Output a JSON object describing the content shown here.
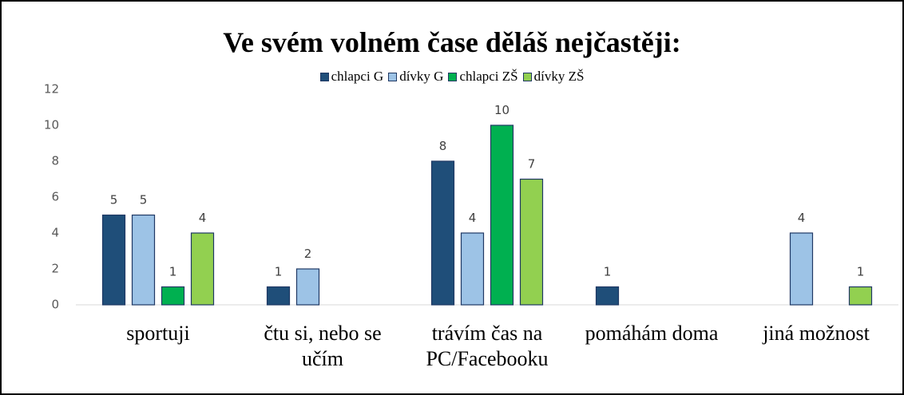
{
  "chart_data": {
    "type": "bar",
    "title": "Ve svém volném čase děláš nejčastěji:",
    "categories": [
      "sportuji",
      "čtu si, nebo se učím",
      "trávím čas na PC/Facebooku",
      "pomáhám doma",
      "jiná možnost"
    ],
    "series": [
      {
        "name": "chlapci G",
        "color": "#1f4e79",
        "values": [
          5,
          1,
          8,
          1,
          null
        ]
      },
      {
        "name": "dívky G",
        "color": "#9dc3e6",
        "values": [
          5,
          2,
          4,
          null,
          4
        ]
      },
      {
        "name": "chlapci ZŠ",
        "color": "#00b050",
        "values": [
          1,
          null,
          10,
          null,
          null
        ]
      },
      {
        "name": "dívky ZŠ",
        "color": "#92d050",
        "values": [
          4,
          null,
          7,
          null,
          1
        ]
      }
    ],
    "ylim": [
      0,
      12
    ],
    "yticks": [
      0,
      2,
      4,
      6,
      8,
      10,
      12
    ],
    "grid": false,
    "legend": "top"
  }
}
